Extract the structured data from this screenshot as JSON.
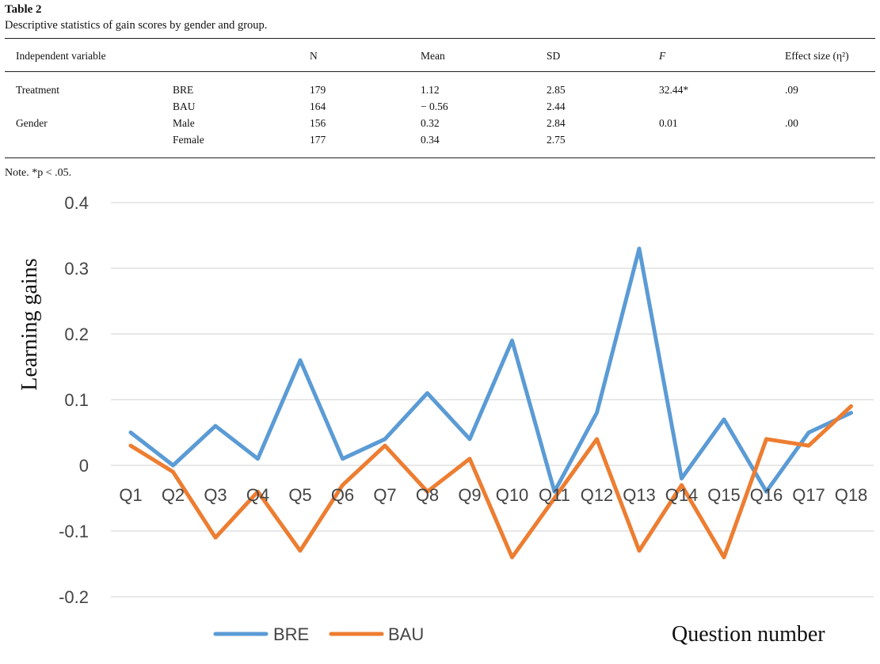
{
  "table": {
    "title": "Table 2",
    "caption": "Descriptive statistics of gain scores by gender and group.",
    "headers": {
      "independent_variable": "Independent variable",
      "n": "N",
      "mean": "Mean",
      "sd": "SD",
      "f": "F",
      "effect_size": "Effect size (η²)"
    },
    "rows": [
      {
        "variable": "Treatment",
        "level": "BRE",
        "n": "179",
        "mean": "1.12",
        "sd": "2.85",
        "f": "32.44*",
        "effect": ".09"
      },
      {
        "variable": "",
        "level": "BAU",
        "n": "164",
        "mean": "− 0.56",
        "sd": "2.44",
        "f": "",
        "effect": ""
      },
      {
        "variable": "Gender",
        "level": "Male",
        "n": "156",
        "mean": "0.32",
        "sd": "2.84",
        "f": "0.01",
        "effect": ".00"
      },
      {
        "variable": "",
        "level": "Female",
        "n": "177",
        "mean": "0.34",
        "sd": "2.75",
        "f": "",
        "effect": ""
      }
    ],
    "note": "Note. *p  <  .05."
  },
  "chart_data": {
    "type": "line",
    "xlabel": "Question number",
    "ylabel": "Learning gains",
    "ylim": [
      -0.2,
      0.4
    ],
    "yticks": [
      0.4,
      0.3,
      0.2,
      0.1,
      0,
      -0.1,
      -0.2
    ],
    "ytick_labels": [
      "0.4",
      "0.3",
      "0.2",
      "0.1",
      "0",
      "-0.1",
      "-0.2"
    ],
    "grid": true,
    "legend_position": "bottom",
    "categories": [
      "Q1",
      "Q2",
      "Q3",
      "Q4",
      "Q5",
      "Q6",
      "Q7",
      "Q8",
      "Q9",
      "Q10",
      "Q11",
      "Q12",
      "Q13",
      "Q14",
      "Q15",
      "Q16",
      "Q17",
      "Q18"
    ],
    "series": [
      {
        "name": "BRE",
        "color": "#5b9bd5",
        "values": [
          0.05,
          0.0,
          0.06,
          0.01,
          0.16,
          0.01,
          0.04,
          0.11,
          0.04,
          0.19,
          -0.04,
          0.08,
          0.33,
          -0.02,
          0.07,
          -0.04,
          0.05,
          0.08
        ]
      },
      {
        "name": "BAU",
        "color": "#ed7d31",
        "values": [
          0.03,
          -0.01,
          -0.11,
          -0.04,
          -0.13,
          -0.03,
          0.03,
          -0.04,
          0.01,
          -0.14,
          -0.05,
          0.04,
          -0.13,
          -0.03,
          -0.14,
          0.04,
          0.03,
          0.09
        ]
      }
    ]
  }
}
